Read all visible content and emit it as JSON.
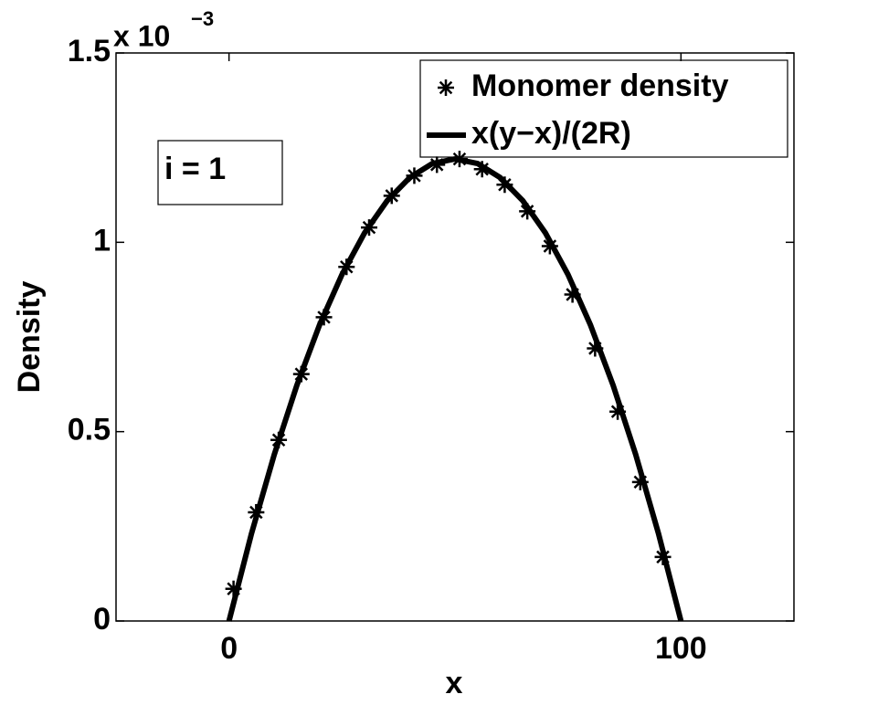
{
  "chart_data": {
    "type": "line",
    "xlabel": "x",
    "ylabel": "Density",
    "y_multiplier": {
      "base": "x 10",
      "exponent": "−3"
    },
    "annotation": "i = 1",
    "xlim": [
      -25,
      125
    ],
    "xticks": [
      0,
      100
    ],
    "ylim": [
      0,
      1.5
    ],
    "yticks": [
      0,
      0.5,
      1,
      1.5
    ],
    "legend": "top-right",
    "series": [
      {
        "name": "Monomer density",
        "style": "markers",
        "color": "#000000",
        "x": [
          1,
          6,
          11,
          16,
          21,
          26,
          31,
          36,
          41,
          46,
          51,
          56,
          61,
          66,
          71,
          76,
          81,
          86,
          91,
          96
        ],
        "values": [
          0.085,
          0.287,
          0.478,
          0.652,
          0.802,
          0.935,
          1.039,
          1.123,
          1.176,
          1.205,
          1.22,
          1.193,
          1.152,
          1.082,
          0.99,
          0.862,
          0.72,
          0.553,
          0.367,
          0.169
        ]
      },
      {
        "name": "x(y−x)/(2R)",
        "style": "line",
        "color": "#000000",
        "x": [
          0,
          5,
          10,
          15,
          20,
          25,
          30,
          35,
          40,
          45,
          50,
          55,
          60,
          65,
          70,
          75,
          80,
          85,
          90,
          95,
          100
        ],
        "values": [
          0,
          0.232,
          0.439,
          0.622,
          0.781,
          0.915,
          1.025,
          1.11,
          1.171,
          1.208,
          1.22,
          1.208,
          1.171,
          1.11,
          1.025,
          0.915,
          0.781,
          0.622,
          0.439,
          0.232,
          0
        ]
      }
    ]
  }
}
